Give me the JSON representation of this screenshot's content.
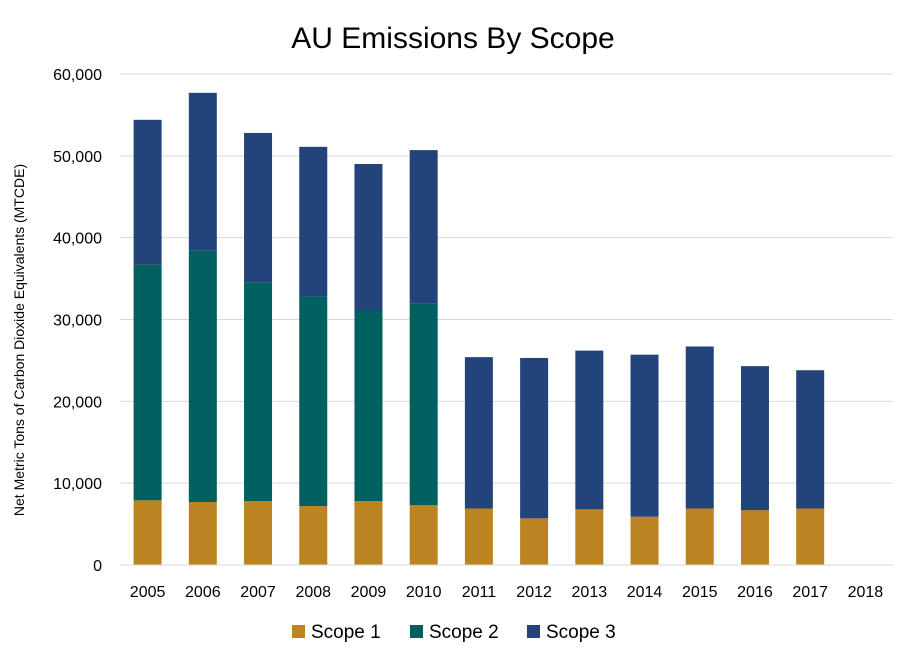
{
  "chart_data": {
    "type": "bar",
    "stacked": true,
    "title": "AU Emissions By Scope",
    "xlabel": "",
    "ylabel": "Net Metric Tons of Carbon Dioxide Equivalents (MTCDE)",
    "ylim": [
      0,
      60000
    ],
    "yticks": [
      0,
      10000,
      20000,
      30000,
      40000,
      50000,
      60000
    ],
    "ytick_labels": [
      "0",
      "10,000",
      "20,000",
      "30,000",
      "40,000",
      "50,000",
      "60,000"
    ],
    "grid": true,
    "legend": "bottom",
    "categories": [
      "2005",
      "2006",
      "2007",
      "2008",
      "2009",
      "2010",
      "2011",
      "2012",
      "2013",
      "2014",
      "2015",
      "2016",
      "2017",
      "2018"
    ],
    "series": [
      {
        "name": "Scope 1",
        "color": "#BC8420",
        "values": [
          7900,
          7700,
          7800,
          7200,
          7800,
          7300,
          6900,
          5700,
          6800,
          5900,
          6900,
          6700,
          6900,
          0
        ]
      },
      {
        "name": "Scope 2",
        "color": "#00605F",
        "values": [
          28800,
          30700,
          26700,
          25600,
          23300,
          24700,
          0,
          0,
          0,
          0,
          0,
          0,
          0,
          0
        ]
      },
      {
        "name": "Scope 3",
        "color": "#23447A",
        "values": [
          17700,
          19300,
          18300,
          18300,
          17900,
          18700,
          18500,
          19600,
          19400,
          19800,
          19800,
          17600,
          16900,
          0
        ]
      }
    ]
  }
}
